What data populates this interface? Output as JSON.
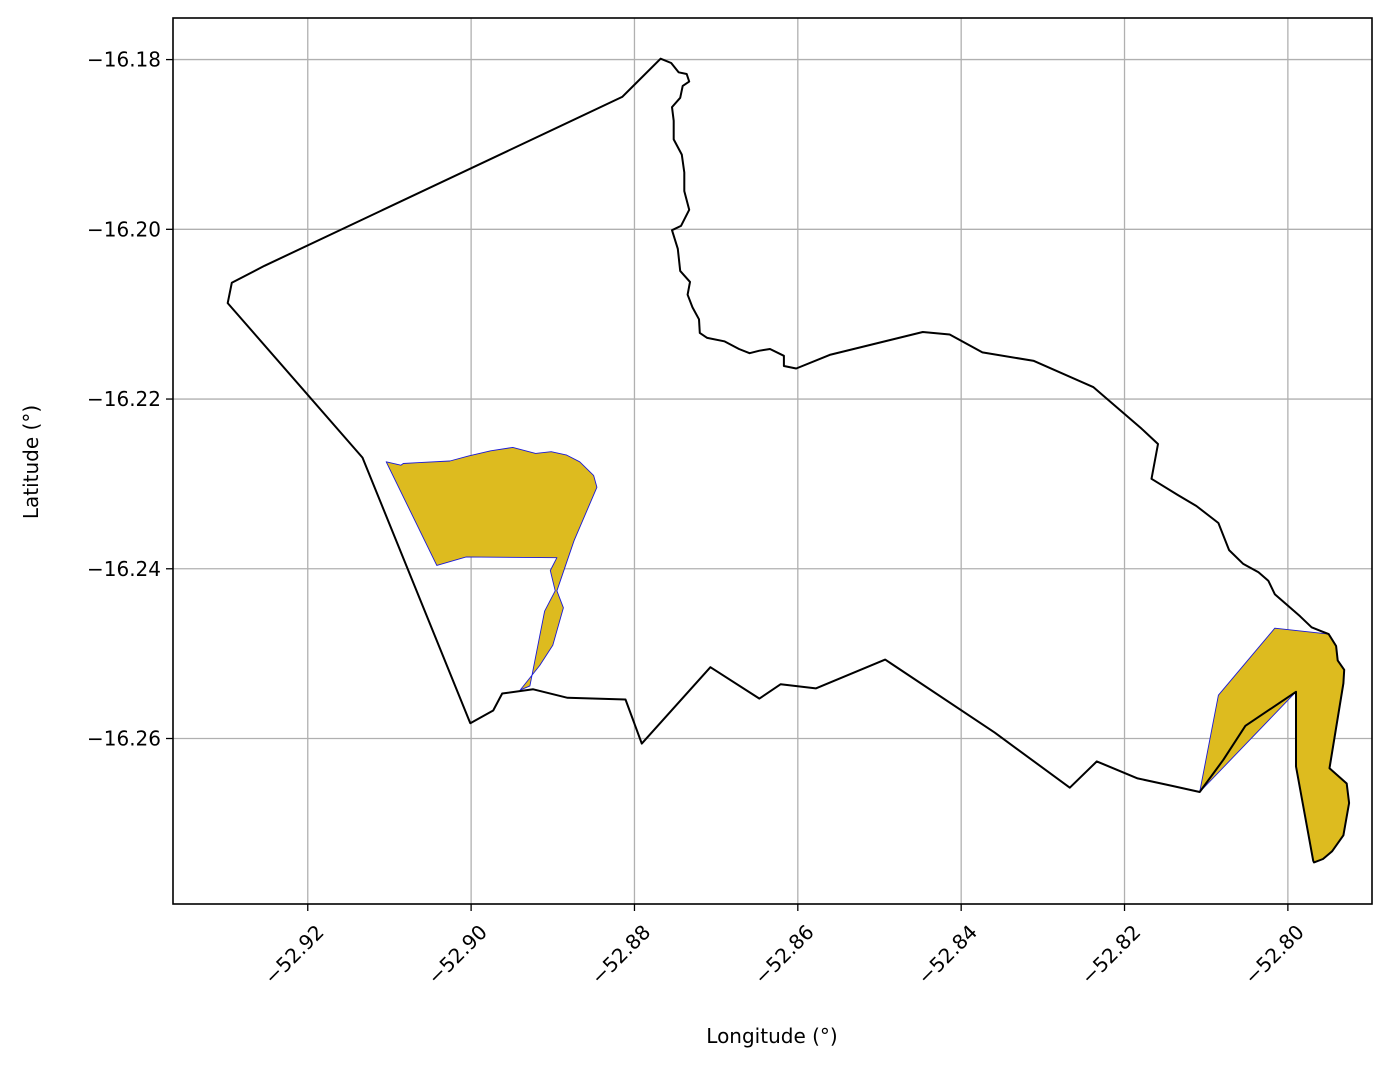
{
  "chart_data": {
    "type": "map",
    "title": "",
    "xlabel": "Longitude (°)",
    "ylabel": "Latitude (°)",
    "xlim": [
      -52.9365,
      -52.7897
    ],
    "ylim": [
      -16.2795,
      -16.1751
    ],
    "grid": true,
    "xticks": [
      -52.92,
      -52.9,
      -52.88,
      -52.86,
      -52.84,
      -52.82,
      -52.8
    ],
    "xtick_labels": [
      "−52.92",
      "−52.90",
      "−52.88",
      "−52.86",
      "−52.84",
      "−52.82",
      "−52.80"
    ],
    "yticks": [
      -16.18,
      -16.2,
      -16.22,
      -16.24,
      -16.26
    ],
    "ytick_labels": [
      "−16.18",
      "−16.20",
      "−16.22",
      "−16.24",
      "−16.26"
    ],
    "colors": {
      "boundary": "#000000",
      "fill": "#DDBB1F",
      "fill_edge": "#1a1ad6",
      "grid": "#b0b0b0"
    },
    "boundary": [
      [
        -52.9298,
        -16.2087
      ],
      [
        -52.9293,
        -16.2063
      ],
      [
        -52.9253,
        -16.2043
      ],
      [
        -52.8815,
        -16.1844
      ],
      [
        -52.8768,
        -16.1799
      ],
      [
        -52.8755,
        -16.1804
      ],
      [
        -52.8746,
        -16.1815
      ],
      [
        -52.8736,
        -16.1817
      ],
      [
        -52.8733,
        -16.1826
      ],
      [
        -52.8741,
        -16.1831
      ],
      [
        -52.8744,
        -16.1845
      ],
      [
        -52.8754,
        -16.1856
      ],
      [
        -52.8752,
        -16.1872
      ],
      [
        -52.8752,
        -16.1894
      ],
      [
        -52.8742,
        -16.1912
      ],
      [
        -52.8739,
        -16.1933
      ],
      [
        -52.8739,
        -16.1955
      ],
      [
        -52.8733,
        -16.1977
      ],
      [
        -52.8743,
        -16.1996
      ],
      [
        -52.8754,
        -16.2001
      ],
      [
        -52.8747,
        -16.2023
      ],
      [
        -52.8744,
        -16.2049
      ],
      [
        -52.8732,
        -16.2062
      ],
      [
        -52.8735,
        -16.2077
      ],
      [
        -52.8729,
        -16.2092
      ],
      [
        -52.8721,
        -16.2106
      ],
      [
        -52.872,
        -16.2122
      ],
      [
        -52.8711,
        -16.2128
      ],
      [
        -52.869,
        -16.2132
      ],
      [
        -52.8672,
        -16.2141
      ],
      [
        -52.8659,
        -16.2146
      ],
      [
        -52.8647,
        -16.2143
      ],
      [
        -52.8634,
        -16.2141
      ],
      [
        -52.8617,
        -16.2149
      ],
      [
        -52.8617,
        -16.2161
      ],
      [
        -52.8602,
        -16.2164
      ],
      [
        -52.8561,
        -16.2148
      ],
      [
        -52.8447,
        -16.2121
      ],
      [
        -52.8414,
        -16.2124
      ],
      [
        -52.8374,
        -16.2145
      ],
      [
        -52.8311,
        -16.2155
      ],
      [
        -52.8238,
        -16.2186
      ],
      [
        -52.8179,
        -16.2235
      ],
      [
        -52.8159,
        -16.2253
      ],
      [
        -52.8167,
        -16.2294
      ],
      [
        -52.8135,
        -16.2313
      ],
      [
        -52.8112,
        -16.2326
      ],
      [
        -52.8085,
        -16.2346
      ],
      [
        -52.8072,
        -16.2378
      ],
      [
        -52.8055,
        -16.2394
      ],
      [
        -52.8036,
        -16.2404
      ],
      [
        -52.8024,
        -16.2414
      ],
      [
        -52.8016,
        -16.243
      ],
      [
        -52.7985,
        -16.2456
      ],
      [
        -52.7971,
        -16.2469
      ],
      [
        -52.7958,
        -16.2474
      ],
      [
        -52.795,
        -16.2477
      ],
      [
        -52.7941,
        -16.2491
      ],
      [
        -52.7939,
        -16.2508
      ],
      [
        -52.7931,
        -16.2519
      ],
      [
        -52.7932,
        -16.2535
      ],
      [
        -52.7949,
        -16.2635
      ],
      [
        -52.7928,
        -16.2653
      ],
      [
        -52.7925,
        -16.2676
      ],
      [
        -52.7932,
        -16.2714
      ],
      [
        -52.7946,
        -16.2733
      ],
      [
        -52.7957,
        -16.2742
      ],
      [
        -52.7968,
        -16.2746
      ],
      [
        -52.7969,
        -16.2744
      ],
      [
        -52.799,
        -16.2633
      ],
      [
        -52.799,
        -16.2545
      ],
      [
        -52.8052,
        -16.2585
      ],
      [
        -52.8079,
        -16.2625
      ],
      [
        -52.8108,
        -16.2663
      ],
      [
        -52.8141,
        -16.2656
      ],
      [
        -52.8184,
        -16.2647
      ],
      [
        -52.8234,
        -16.2627
      ],
      [
        -52.8267,
        -16.2658
      ],
      [
        -52.8359,
        -16.2593
      ],
      [
        -52.8493,
        -16.2507
      ],
      [
        -52.8578,
        -16.2541
      ],
      [
        -52.8621,
        -16.2536
      ],
      [
        -52.8647,
        -16.2553
      ],
      [
        -52.8707,
        -16.2516
      ],
      [
        -52.8791,
        -16.2606
      ],
      [
        -52.8811,
        -16.2554
      ],
      [
        -52.8882,
        -16.2552
      ],
      [
        -52.8924,
        -16.2542
      ],
      [
        -52.8962,
        -16.2547
      ],
      [
        -52.8973,
        -16.2567
      ],
      [
        -52.9001,
        -16.2582
      ],
      [
        -52.9133,
        -16.2269
      ],
      [
        -52.9298,
        -16.2087
      ]
    ],
    "shaded_areas": [
      [
        [
          -52.9104,
          -16.2274
        ],
        [
          -52.9086,
          -16.2278
        ],
        [
          -52.9083,
          -16.2276
        ],
        [
          -52.9066,
          -16.2275
        ],
        [
          -52.9026,
          -16.2273
        ],
        [
          -52.9003,
          -16.2267
        ],
        [
          -52.8976,
          -16.2261
        ],
        [
          -52.8949,
          -16.2257
        ],
        [
          -52.8921,
          -16.2264
        ],
        [
          -52.8902,
          -16.2262
        ],
        [
          -52.8883,
          -16.2266
        ],
        [
          -52.8867,
          -16.2274
        ],
        [
          -52.885,
          -16.229
        ],
        [
          -52.8846,
          -16.2304
        ],
        [
          -52.8874,
          -16.2367
        ],
        [
          -52.8895,
          -16.2426
        ],
        [
          -52.8887,
          -16.2446
        ],
        [
          -52.89,
          -16.249
        ],
        [
          -52.8916,
          -16.2514
        ],
        [
          -52.8935,
          -16.2537
        ],
        [
          -52.894,
          -16.2543
        ],
        [
          -52.8928,
          -16.2538
        ],
        [
          -52.891,
          -16.245
        ],
        [
          -52.8897,
          -16.2426
        ],
        [
          -52.8903,
          -16.2402
        ],
        [
          -52.8895,
          -16.2387
        ],
        [
          -52.9006,
          -16.2386
        ],
        [
          -52.9042,
          -16.2396
        ],
        [
          -52.9104,
          -16.2274
        ]
      ],
      [
        [
          -52.8085,
          -16.2549
        ],
        [
          -52.8016,
          -16.247
        ],
        [
          -52.795,
          -16.2477
        ],
        [
          -52.7941,
          -16.2491
        ],
        [
          -52.7939,
          -16.2508
        ],
        [
          -52.7931,
          -16.2519
        ],
        [
          -52.7932,
          -16.2535
        ],
        [
          -52.7949,
          -16.2635
        ],
        [
          -52.7928,
          -16.2653
        ],
        [
          -52.7925,
          -16.2676
        ],
        [
          -52.7932,
          -16.2714
        ],
        [
          -52.7946,
          -16.2733
        ],
        [
          -52.7957,
          -16.2742
        ],
        [
          -52.7968,
          -16.2746
        ],
        [
          -52.7969,
          -16.2744
        ],
        [
          -52.799,
          -16.2633
        ],
        [
          -52.799,
          -16.2545
        ],
        [
          -52.8108,
          -16.2663
        ],
        [
          -52.8085,
          -16.2549
        ]
      ]
    ]
  }
}
